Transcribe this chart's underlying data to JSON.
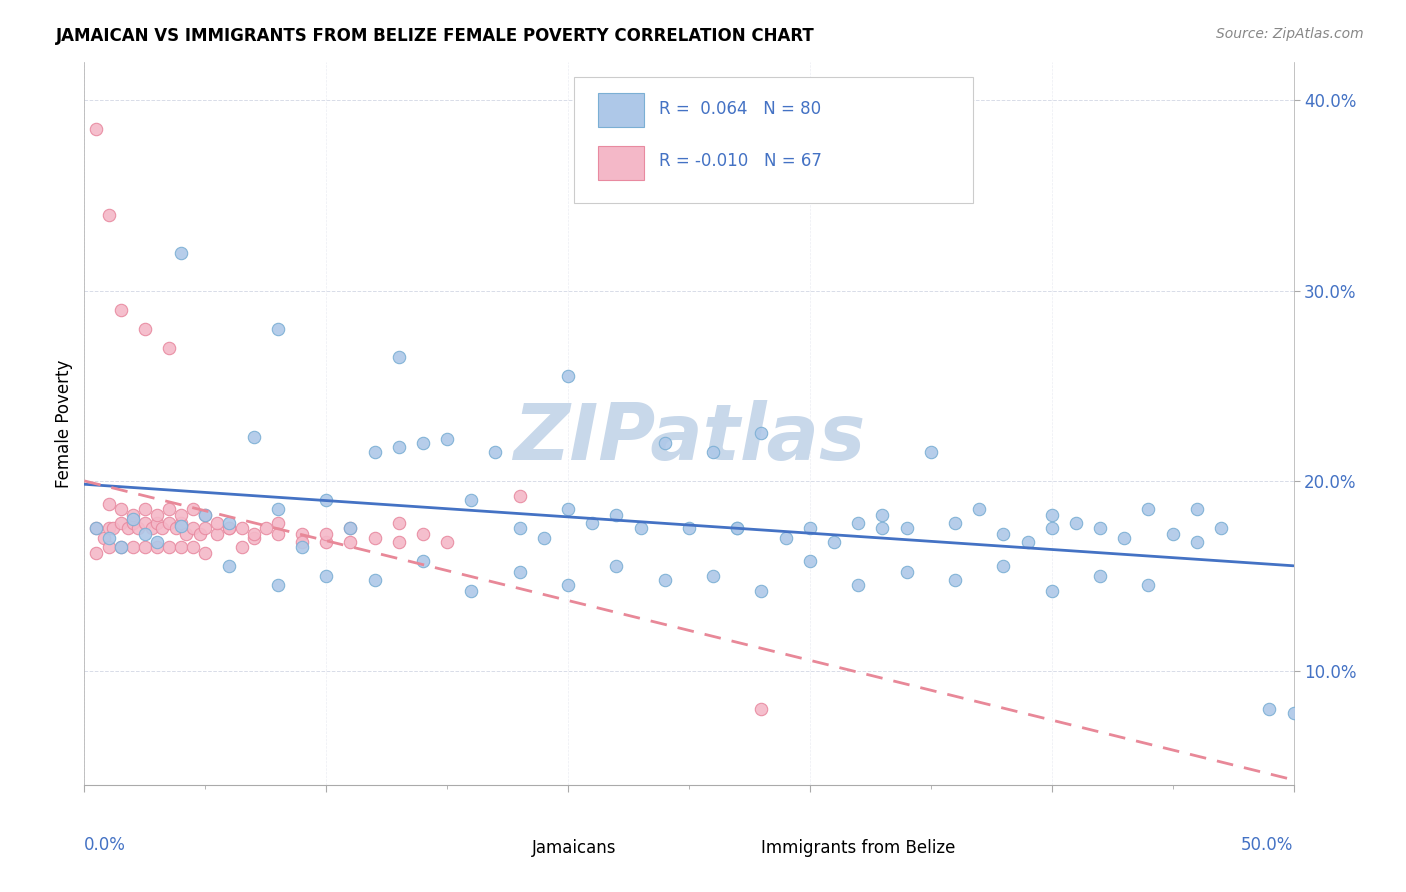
{
  "title": "JAMAICAN VS IMMIGRANTS FROM BELIZE FEMALE POVERTY CORRELATION CHART",
  "source": "Source: ZipAtlas.com",
  "ylabel": "Female Poverty",
  "xlim": [
    0.0,
    0.5
  ],
  "ylim": [
    0.04,
    0.42
  ],
  "yticks": [
    0.1,
    0.2,
    0.3,
    0.4
  ],
  "ytick_labels": [
    "10.0%",
    "20.0%",
    "30.0%",
    "40.0%"
  ],
  "r_jamaican": 0.064,
  "n_jamaican": 80,
  "r_belize": -0.01,
  "n_belize": 67,
  "jamaican_dot_face": "#aec8e8",
  "jamaican_dot_edge": "#7bafd4",
  "belize_dot_face": "#f4b8c8",
  "belize_dot_edge": "#e88aa0",
  "line_jamaican": "#4472c4",
  "line_belize": "#e88898",
  "legend_blue_face": "#aec8e8",
  "legend_blue_edge": "#7bafd4",
  "legend_pink_face": "#f4b8c8",
  "legend_pink_edge": "#e88aa0",
  "watermark": "ZIPatlas",
  "watermark_color": "#c8d8ea",
  "grid_color": "#d8dce8",
  "jamaican_x": [
    0.005,
    0.01,
    0.015,
    0.02,
    0.025,
    0.03,
    0.04,
    0.05,
    0.06,
    0.07,
    0.08,
    0.09,
    0.1,
    0.11,
    0.12,
    0.13,
    0.14,
    0.15,
    0.16,
    0.17,
    0.18,
    0.19,
    0.2,
    0.21,
    0.22,
    0.23,
    0.24,
    0.25,
    0.26,
    0.27,
    0.28,
    0.29,
    0.3,
    0.31,
    0.32,
    0.33,
    0.34,
    0.35,
    0.36,
    0.37,
    0.38,
    0.39,
    0.4,
    0.41,
    0.42,
    0.43,
    0.44,
    0.45,
    0.46,
    0.47,
    0.06,
    0.1,
    0.14,
    0.18,
    0.22,
    0.26,
    0.3,
    0.34,
    0.38,
    0.42,
    0.08,
    0.12,
    0.16,
    0.2,
    0.24,
    0.28,
    0.32,
    0.36,
    0.4,
    0.44,
    0.04,
    0.08,
    0.13,
    0.2,
    0.27,
    0.33,
    0.4,
    0.46,
    0.49,
    0.5
  ],
  "jamaican_y": [
    0.175,
    0.17,
    0.165,
    0.18,
    0.172,
    0.168,
    0.176,
    0.182,
    0.178,
    0.223,
    0.185,
    0.165,
    0.19,
    0.175,
    0.215,
    0.218,
    0.22,
    0.222,
    0.19,
    0.215,
    0.175,
    0.17,
    0.185,
    0.178,
    0.182,
    0.175,
    0.22,
    0.175,
    0.215,
    0.175,
    0.225,
    0.17,
    0.175,
    0.168,
    0.178,
    0.182,
    0.175,
    0.215,
    0.178,
    0.185,
    0.172,
    0.168,
    0.182,
    0.178,
    0.175,
    0.17,
    0.185,
    0.172,
    0.168,
    0.175,
    0.155,
    0.15,
    0.158,
    0.152,
    0.155,
    0.15,
    0.158,
    0.152,
    0.155,
    0.15,
    0.145,
    0.148,
    0.142,
    0.145,
    0.148,
    0.142,
    0.145,
    0.148,
    0.142,
    0.145,
    0.32,
    0.28,
    0.265,
    0.255,
    0.175,
    0.175,
    0.175,
    0.185,
    0.08,
    0.078
  ],
  "belize_x": [
    0.005,
    0.005,
    0.008,
    0.01,
    0.01,
    0.012,
    0.015,
    0.015,
    0.018,
    0.02,
    0.02,
    0.022,
    0.025,
    0.025,
    0.028,
    0.03,
    0.03,
    0.032,
    0.035,
    0.035,
    0.038,
    0.04,
    0.04,
    0.042,
    0.045,
    0.045,
    0.048,
    0.05,
    0.05,
    0.055,
    0.06,
    0.065,
    0.07,
    0.08,
    0.09,
    0.1,
    0.11,
    0.12,
    0.13,
    0.14,
    0.01,
    0.015,
    0.02,
    0.025,
    0.03,
    0.035,
    0.04,
    0.045,
    0.05,
    0.055,
    0.06,
    0.065,
    0.07,
    0.075,
    0.08,
    0.09,
    0.1,
    0.11,
    0.13,
    0.15,
    0.005,
    0.01,
    0.015,
    0.025,
    0.035,
    0.18,
    0.28
  ],
  "belize_y": [
    0.175,
    0.162,
    0.17,
    0.175,
    0.165,
    0.175,
    0.178,
    0.165,
    0.175,
    0.178,
    0.165,
    0.175,
    0.178,
    0.165,
    0.175,
    0.178,
    0.165,
    0.175,
    0.178,
    0.165,
    0.175,
    0.178,
    0.165,
    0.172,
    0.175,
    0.165,
    0.172,
    0.175,
    0.162,
    0.172,
    0.175,
    0.165,
    0.17,
    0.178,
    0.172,
    0.168,
    0.175,
    0.17,
    0.178,
    0.172,
    0.188,
    0.185,
    0.182,
    0.185,
    0.182,
    0.185,
    0.182,
    0.185,
    0.182,
    0.178,
    0.175,
    0.175,
    0.172,
    0.175,
    0.172,
    0.168,
    0.172,
    0.168,
    0.168,
    0.168,
    0.385,
    0.34,
    0.29,
    0.28,
    0.27,
    0.192,
    0.08
  ]
}
